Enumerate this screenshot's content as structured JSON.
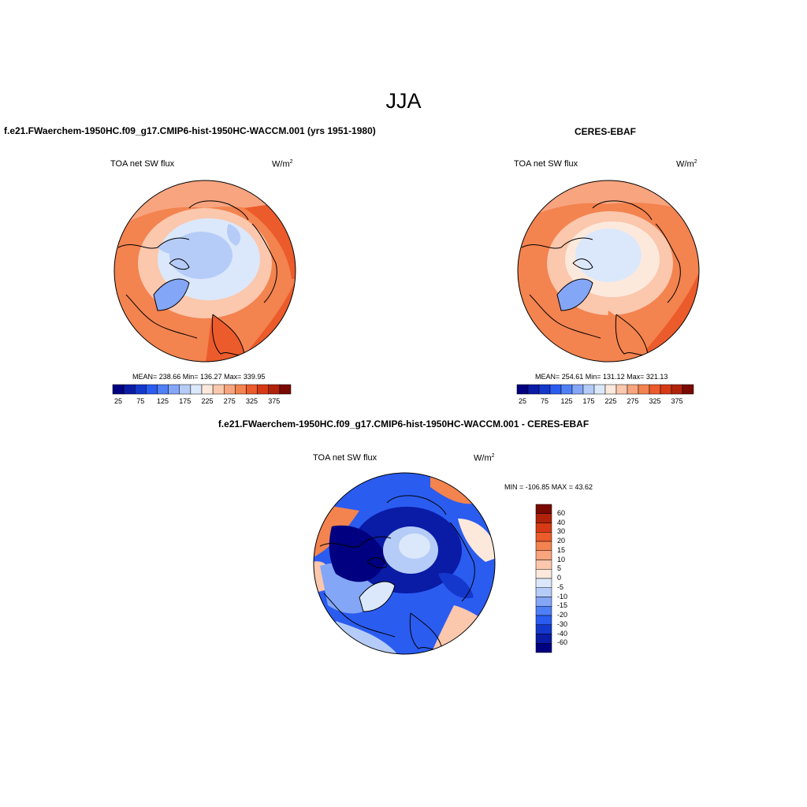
{
  "main_title": "JJA",
  "panels": [
    {
      "id": "model",
      "title": "f.e21.FWaerchem-1950HC.f09_g17.CMIP6-hist-1950HC-WACCM.001 (yrs 1951-1980)",
      "variable": "TOA net SW flux",
      "units_base": "W/m",
      "units_exp": "2",
      "stats": "MEAN= 238.66  Min= 136.27  Max= 339.95"
    },
    {
      "id": "obs",
      "title": "CERES-EBAF",
      "variable": "TOA net SW flux",
      "units_base": "W/m",
      "units_exp": "2",
      "stats": "MEAN= 254.61  Min= 131.12  Max= 321.13"
    },
    {
      "id": "diff",
      "title": "f.e21.FWaerchem-1950HC.f09_g17.CMIP6-hist-1950HC-WACCM.001 - CERES-EBAF",
      "variable": "TOA net SW flux",
      "units_base": "W/m",
      "units_exp": "2",
      "stats": "MIN = -106.85 MAX =  43.62"
    }
  ],
  "abs_colorbar": {
    "colors": [
      "#000080",
      "#0a1ba6",
      "#1437cc",
      "#2a5cf0",
      "#4f7ff5",
      "#84a6f7",
      "#b5ccf8",
      "#dbe8fb",
      "#fde9dc",
      "#fbc7ad",
      "#f7a47f",
      "#f3834f",
      "#ec5b2b",
      "#d63a15",
      "#b0220a",
      "#7a0a00"
    ],
    "labels": [
      "25",
      "75",
      "125",
      "175",
      "225",
      "275",
      "325",
      "375"
    ]
  },
  "diff_colorbar": {
    "colors": [
      "#7a0a00",
      "#b0220a",
      "#d63a15",
      "#ec5b2b",
      "#f3834f",
      "#f7a47f",
      "#fbc7ad",
      "#fde9dc",
      "#dbe8fb",
      "#b5ccf8",
      "#84a6f7",
      "#4f7ff5",
      "#2a5cf0",
      "#1437cc",
      "#0a1ba6",
      "#000080"
    ],
    "labels": [
      "60",
      "40",
      "30",
      "20",
      "15",
      "10",
      "5",
      "0",
      "-5",
      "-10",
      "-15",
      "-20",
      "-30",
      "-40",
      "-60"
    ]
  }
}
